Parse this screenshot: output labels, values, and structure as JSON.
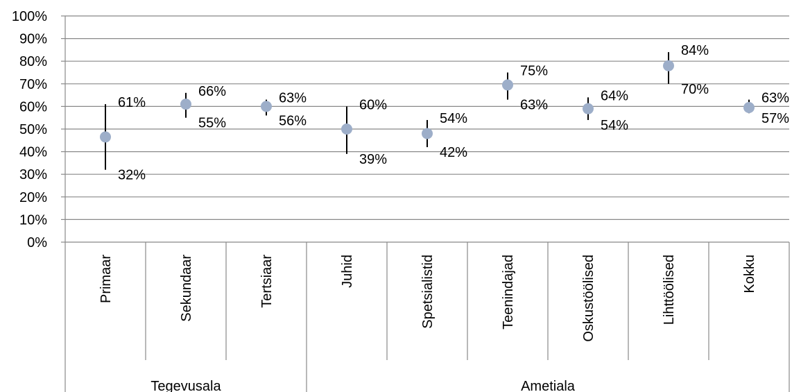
{
  "chart_data": {
    "type": "scatter",
    "title": "",
    "xlabel": "",
    "ylabel": "",
    "ylim": [
      0,
      1
    ],
    "yticks": [
      "0%",
      "10%",
      "20%",
      "30%",
      "40%",
      "50%",
      "60%",
      "70%",
      "80%",
      "90%",
      "100%"
    ],
    "grid": "horizontal",
    "categories": [
      "Primaar",
      "Sekundaar",
      "Tertsiaar",
      "Juhid",
      "Spetsialistid",
      "Teenindajad",
      "Oskustöölised",
      "Lihttöölised",
      "Kokku"
    ],
    "groups": [
      {
        "name": "Tegevusala",
        "categories": [
          "Primaar",
          "Sekundaar",
          "Tertsiaar"
        ]
      },
      {
        "name": "Ametiala",
        "categories": [
          "Juhid",
          "Spetsialistid",
          "Teenindajad",
          "Oskustöölised",
          "Lihttöölised",
          "Kokku"
        ]
      }
    ],
    "series": [
      {
        "values": [
          0.465,
          0.61,
          0.6,
          0.5,
          0.48,
          0.695,
          0.59,
          0.78,
          0.595
        ],
        "upper": [
          0.61,
          0.66,
          0.63,
          0.6,
          0.54,
          0.75,
          0.64,
          0.84,
          0.63
        ],
        "lower": [
          0.32,
          0.55,
          0.56,
          0.39,
          0.42,
          0.63,
          0.54,
          0.7,
          0.57
        ],
        "upper_labels": [
          "61%",
          "66%",
          "63%",
          "60%",
          "54%",
          "75%",
          "64%",
          "84%",
          "63%"
        ],
        "lower_labels": [
          "32%",
          "55%",
          "56%",
          "39%",
          "42%",
          "63%",
          "54%",
          "70%",
          "57%"
        ],
        "color": "#9daec9"
      }
    ]
  }
}
